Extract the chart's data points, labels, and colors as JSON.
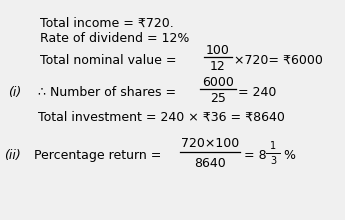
{
  "background_color": "#f0f0f0",
  "fs": 9.0,
  "fs_small": 7.0,
  "line1": "Total income = ₹720.",
  "line2": "Rate of dividend = 12%",
  "tnv_label": "Total nominal value = ",
  "tnv_num": "100",
  "tnv_den": "12",
  "tnv_suffix": "×720= ₹6000",
  "i_prefix": "(i)",
  "nos_label": "∴ Number of shares = ",
  "nos_num": "6000",
  "nos_den": "25",
  "nos_suffix": "= 240",
  "ti_line": "Total investment = 240 × ₹36 = ₹8640",
  "ii_prefix": "(ii)",
  "pr_label": "Percentage return = ",
  "pr_num": "720×100",
  "pr_den": "8640",
  "pr_suffix": "= 8",
  "pr_frac_num": "1",
  "pr_frac_den": "3",
  "pr_pct": "%"
}
